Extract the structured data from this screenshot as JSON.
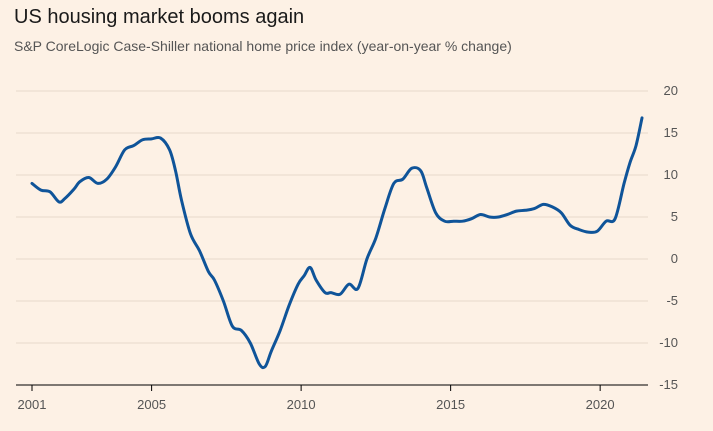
{
  "header": {
    "title": "US housing market booms again",
    "subtitle": "S&P CoreLogic Case-Shiller national home price index (year-on-year % change)"
  },
  "colors": {
    "background": "#fdf1e5",
    "line": "#0f5499",
    "grid": "#e6d9cc"
  },
  "chart_data": {
    "type": "line",
    "title": "US housing market booms again",
    "subtitle": "S&P CoreLogic Case-Shiller national home price index (year-on-year % change)",
    "xlabel": "",
    "ylabel": "",
    "xlim": [
      2001,
      2021.5
    ],
    "ylim": [
      -15,
      20
    ],
    "x_ticks": [
      2001,
      2005,
      2010,
      2015,
      2020
    ],
    "y_ticks": [
      20,
      15,
      10,
      5,
      0,
      -5,
      -10,
      -15
    ],
    "y_axis_side": "right",
    "grid": "horizontal",
    "series": [
      {
        "x": [
          2001.0,
          2001.3,
          2001.6,
          2001.9,
          2002.1,
          2002.4,
          2002.6,
          2002.9,
          2003.2,
          2003.5,
          2003.8,
          2004.1,
          2004.4,
          2004.7,
          2005.0,
          2005.3,
          2005.6,
          2005.8,
          2006.0,
          2006.3,
          2006.6,
          2006.9,
          2007.1,
          2007.4,
          2007.7,
          2008.0,
          2008.3,
          2008.6,
          2008.8,
          2009.0,
          2009.3,
          2009.6,
          2009.9,
          2010.1,
          2010.3,
          2010.5,
          2010.8,
          2011.0,
          2011.3,
          2011.6,
          2011.9,
          2012.2,
          2012.5,
          2012.8,
          2013.1,
          2013.4,
          2013.7,
          2014.0,
          2014.2,
          2014.5,
          2014.8,
          2015.1,
          2015.4,
          2015.7,
          2016.0,
          2016.3,
          2016.6,
          2016.9,
          2017.2,
          2017.5,
          2017.8,
          2018.1,
          2018.4,
          2018.7,
          2019.0,
          2019.3,
          2019.6,
          2019.9,
          2020.2,
          2020.5,
          2020.8,
          2021.0,
          2021.2,
          2021.4
        ],
        "y": [
          9.0,
          8.2,
          8.0,
          6.8,
          7.2,
          8.3,
          9.2,
          9.7,
          9.0,
          9.5,
          11.0,
          13.0,
          13.5,
          14.2,
          14.3,
          14.4,
          13.0,
          10.5,
          7.0,
          3.0,
          1.0,
          -1.5,
          -2.5,
          -5.0,
          -8.0,
          -8.5,
          -10.0,
          -12.5,
          -12.8,
          -11.0,
          -8.5,
          -5.5,
          -3.0,
          -2.0,
          -1.0,
          -2.5,
          -4.0,
          -4.0,
          -4.2,
          -3.0,
          -3.5,
          0.0,
          2.5,
          6.0,
          9.0,
          9.5,
          10.8,
          10.5,
          8.5,
          5.5,
          4.5,
          4.5,
          4.5,
          4.8,
          5.3,
          5.0,
          5.0,
          5.3,
          5.7,
          5.8,
          6.0,
          6.5,
          6.2,
          5.5,
          4.0,
          3.5,
          3.2,
          3.3,
          4.5,
          4.8,
          9.0,
          11.5,
          13.5,
          16.8
        ]
      }
    ]
  }
}
